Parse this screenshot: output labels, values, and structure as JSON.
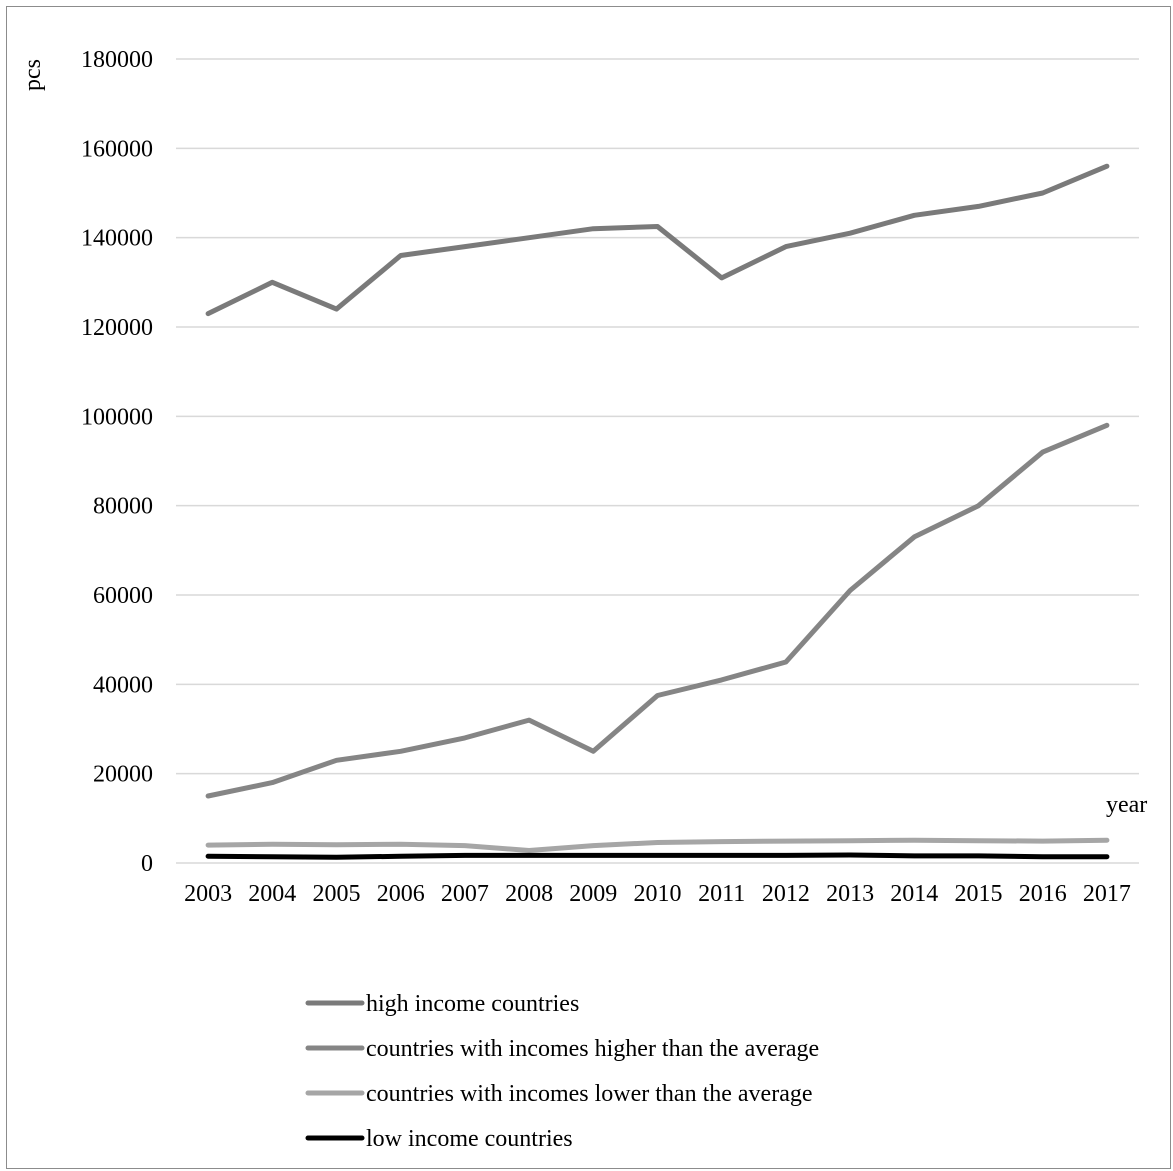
{
  "chart_data": {
    "type": "line",
    "title": "",
    "ylabel": "pcs",
    "xlabel": "year",
    "ylim": [
      0,
      180000
    ],
    "yticks": [
      "0",
      "20000",
      "40000",
      "60000",
      "80000",
      "100000",
      "120000",
      "140000",
      "160000",
      "180000"
    ],
    "grid": true,
    "legend_position": "bottom",
    "categories": [
      "2003",
      "2004",
      "2005",
      "2006",
      "2007",
      "2008",
      "2009",
      "2010",
      "2011",
      "2012",
      "2013",
      "2014",
      "2015",
      "2016",
      "2017"
    ],
    "series": [
      {
        "name": "high income countries",
        "color": "#7a7a7a",
        "values": [
          123000,
          130000,
          124000,
          136000,
          138000,
          140000,
          142000,
          142500,
          131000,
          138000,
          141000,
          145000,
          147000,
          150000,
          156000
        ]
      },
      {
        "name": "countries with incomes higher than the average",
        "color": "#858585",
        "values": [
          15000,
          18000,
          23000,
          25000,
          28000,
          32000,
          25000,
          37500,
          41000,
          45000,
          61000,
          73000,
          80000,
          92000,
          98000
        ]
      },
      {
        "name": "countries with incomes lower than the average",
        "color": "#a6a6a6",
        "values": [
          4000,
          4200,
          4100,
          4200,
          3900,
          2800,
          3900,
          4600,
          4800,
          4900,
          5000,
          5100,
          5000,
          4900,
          5100
        ]
      },
      {
        "name": "low income countries",
        "color": "#000000",
        "values": [
          1500,
          1400,
          1300,
          1500,
          1700,
          1700,
          1700,
          1700,
          1700,
          1700,
          1800,
          1600,
          1600,
          1400,
          1400
        ]
      }
    ]
  }
}
